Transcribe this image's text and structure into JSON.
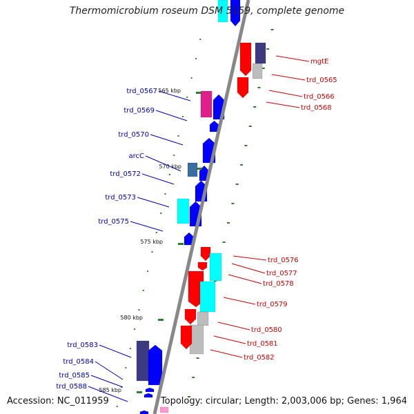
{
  "title": "Thermomicrobium roseum DSM 5159, complete genome",
  "accession": "Accession: NC_011959",
  "summary": "Topology: circular; Length: 2,003,006 bp; Genes: 1,964",
  "colors": {
    "left_label": "#0000b0",
    "right_label": "#cc0000",
    "backbone": "#888888",
    "tick_mark": "#2e7d2e",
    "gene_blue": "#0000ff",
    "gene_red": "#ff0000",
    "gene_cyan": "#00ffff",
    "gene_gray": "#bdbdbd",
    "gene_navy": "#3d3a80",
    "gene_steel": "#3b6ea0",
    "gene_magenta": "#e0208a",
    "gene_pink": "#ff9ad0"
  },
  "scale_ticks": [
    "565 kbp",
    "570 kbp",
    "575 kbp",
    "580 kbp",
    "585 kbp"
  ],
  "left_labels": [
    "trd_0567",
    "trd_0569",
    "trd_0570",
    "arcC",
    "trd_0572",
    "trd_0573",
    "trd_0575",
    "trd_0583",
    "trd_0584",
    "trd_0585",
    "trd_0588"
  ],
  "right_labels": [
    "mgtE",
    "trd_0565",
    "trd_0566",
    "trd_0568",
    "trd_0576",
    "trd_0577",
    "trd_0578",
    "trd_0579",
    "trd_0580",
    "trd_0581",
    "trd_0582"
  ]
}
